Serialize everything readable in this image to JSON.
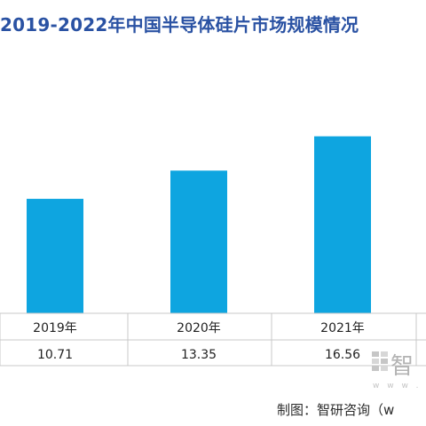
{
  "chart_data": {
    "type": "bar",
    "title": "2019-2022年中国半导体硅片市场规模情况",
    "categories": [
      "2019年",
      "2020年",
      "2021年"
    ],
    "values": [
      10.71,
      13.35,
      16.56
    ],
    "value_labels": [
      "10.71",
      "13.35",
      "16.56"
    ],
    "bar_color": "#0ea5e0",
    "ylim": [
      0,
      24
    ],
    "grid": false,
    "legend": "none"
  },
  "watermark": {
    "text": "智",
    "dots": "w w w ."
  },
  "source": "制图：智研咨询（w"
}
